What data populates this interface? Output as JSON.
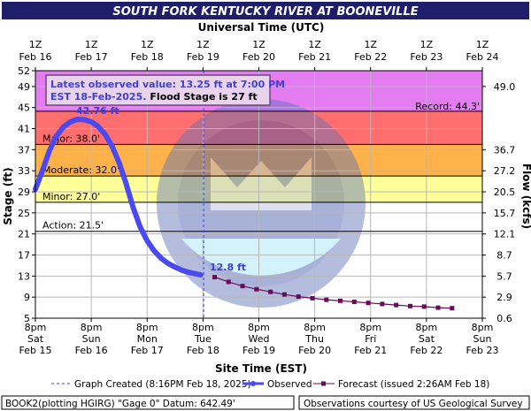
{
  "title": "SOUTH FORK KENTUCKY RIVER AT BOONEVILLE",
  "top_axis_title": "Universal Time (UTC)",
  "bottom_axis_title": "Site Time (EST)",
  "left_axis_title": "Stage (ft)",
  "right_axis_title": "Flow (kcfs)",
  "info_box": {
    "line1": "Latest observed value: 13.25 ft at 7:00 PM",
    "line2_date": "EST 18-Feb-2025.",
    "line2_flood": "Flood Stage is 27 ft"
  },
  "annotations": {
    "peak_label": "42.76 ft",
    "latest_label": "12.8 ft"
  },
  "footer": {
    "left": "BOOK2(plotting HGIRG) \"Gage 0\" Datum: 642.49'",
    "right": "Observations courtesy of US Geological Survey"
  },
  "legend": {
    "created": "Graph Created (8:16PM Feb 18, 2025)",
    "observed": "Observed",
    "forecast": "Forecast (issued 2:26AM Feb 18)"
  },
  "colors": {
    "title_bar": "#1e1e6b",
    "observed": "#4a4af0",
    "forecast": "#6a0a5a",
    "record_band": "#e37cf0",
    "major_band": "#ff6e6e",
    "moderate_band": "#ffb14a",
    "minor_band": "#ffff9a",
    "action_band": "#ffffff"
  },
  "chart_data": {
    "type": "line",
    "title": "SOUTH FORK KENTUCKY RIVER AT BOONEVILLE",
    "xlabel": "Site Time (EST)",
    "x2label": "Universal Time (UTC)",
    "ylabel": "Stage (ft)",
    "y2label": "Flow (kcfs)",
    "x_range": [
      "2025-02-15T20:00",
      "2025-02-23T20:00"
    ],
    "ylim": [
      5,
      52
    ],
    "y_ticks": [
      5,
      9,
      13,
      17,
      21,
      25,
      29,
      33,
      37,
      41,
      45,
      49,
      52
    ],
    "x_ticks_bottom": [
      {
        "time": "8pm",
        "day": "Sat",
        "date": "Feb 15"
      },
      {
        "time": "8pm",
        "day": "Sun",
        "date": "Feb 16"
      },
      {
        "time": "8pm",
        "day": "Mon",
        "date": "Feb 17"
      },
      {
        "time": "8pm",
        "day": "Tue",
        "date": "Feb 18"
      },
      {
        "time": "8pm",
        "day": "Wed",
        "date": "Feb 19"
      },
      {
        "time": "8pm",
        "day": "Thu",
        "date": "Feb 20"
      },
      {
        "time": "8pm",
        "day": "Fri",
        "date": "Feb 21"
      },
      {
        "time": "8pm",
        "day": "Sat",
        "date": "Feb 22"
      },
      {
        "time": "8pm",
        "day": "Sun",
        "date": "Feb 23"
      }
    ],
    "x_ticks_top": [
      {
        "time": "1Z",
        "date": "Feb 16"
      },
      {
        "time": "1Z",
        "date": "Feb 17"
      },
      {
        "time": "1Z",
        "date": "Feb 18"
      },
      {
        "time": "1Z",
        "date": "Feb 19"
      },
      {
        "time": "1Z",
        "date": "Feb 20"
      },
      {
        "time": "1Z",
        "date": "Feb 21"
      },
      {
        "time": "1Z",
        "date": "Feb 22"
      },
      {
        "time": "1Z",
        "date": "Feb 23"
      },
      {
        "time": "1Z",
        "date": "Feb 24"
      }
    ],
    "flow_ticks": [
      {
        "stage": 49,
        "label": "49.0"
      },
      {
        "stage": 37,
        "label": "36.7"
      },
      {
        "stage": 33,
        "label": "27.2"
      },
      {
        "stage": 29,
        "label": "20.5"
      },
      {
        "stage": 25,
        "label": "15.7"
      },
      {
        "stage": 21,
        "label": "12.1"
      },
      {
        "stage": 17,
        "label": "8.7"
      },
      {
        "stage": 13,
        "label": "5.7"
      },
      {
        "stage": 9,
        "label": "2.9"
      },
      {
        "stage": 5,
        "label": "0.6"
      }
    ],
    "thresholds": [
      {
        "name": "Record",
        "label": "Record: 44.3'",
        "value": 44.3
      },
      {
        "name": "Major",
        "label": "Major: 38.0'",
        "value": 38.0
      },
      {
        "name": "Moderate",
        "label": "Moderate: 32.0'",
        "value": 32.0
      },
      {
        "name": "Minor",
        "label": "Minor: 27.0'",
        "value": 27.0
      },
      {
        "name": "Action",
        "label": "Action: 21.5'",
        "value": 21.5
      }
    ],
    "graph_created": "2025-02-18T20:16",
    "series": [
      {
        "name": "Observed",
        "points": [
          {
            "t": "2025-02-15T20:00",
            "y": 29.5
          },
          {
            "t": "2025-02-15T23:00",
            "y": 33.0
          },
          {
            "t": "2025-02-16T02:00",
            "y": 36.8
          },
          {
            "t": "2025-02-16T05:00",
            "y": 39.6
          },
          {
            "t": "2025-02-16T08:00",
            "y": 41.3
          },
          {
            "t": "2025-02-16T11:00",
            "y": 42.3
          },
          {
            "t": "2025-02-16T14:00",
            "y": 42.76
          },
          {
            "t": "2025-02-16T17:00",
            "y": 42.7
          },
          {
            "t": "2025-02-16T20:00",
            "y": 42.3
          },
          {
            "t": "2025-02-16T23:00",
            "y": 41.4
          },
          {
            "t": "2025-02-17T02:00",
            "y": 39.9
          },
          {
            "t": "2025-02-17T05:00",
            "y": 37.6
          },
          {
            "t": "2025-02-17T08:00",
            "y": 34.5
          },
          {
            "t": "2025-02-17T11:00",
            "y": 30.5
          },
          {
            "t": "2025-02-17T14:00",
            "y": 26.0
          },
          {
            "t": "2025-02-17T17:00",
            "y": 22.3
          },
          {
            "t": "2025-02-17T20:00",
            "y": 19.7
          },
          {
            "t": "2025-02-17T23:00",
            "y": 17.8
          },
          {
            "t": "2025-02-18T02:00",
            "y": 16.4
          },
          {
            "t": "2025-02-18T05:00",
            "y": 15.4
          },
          {
            "t": "2025-02-18T08:00",
            "y": 14.7
          },
          {
            "t": "2025-02-18T11:00",
            "y": 14.1
          },
          {
            "t": "2025-02-18T14:00",
            "y": 13.7
          },
          {
            "t": "2025-02-18T19:00",
            "y": 13.25
          }
        ]
      },
      {
        "name": "Forecast (issued 2:26AM Feb 18)",
        "points": [
          {
            "t": "2025-02-19T01:00",
            "y": 12.8
          },
          {
            "t": "2025-02-19T07:00",
            "y": 11.9
          },
          {
            "t": "2025-02-19T13:00",
            "y": 11.1
          },
          {
            "t": "2025-02-19T19:00",
            "y": 10.5
          },
          {
            "t": "2025-02-20T01:00",
            "y": 10.0
          },
          {
            "t": "2025-02-20T07:00",
            "y": 9.5
          },
          {
            "t": "2025-02-20T13:00",
            "y": 9.1
          },
          {
            "t": "2025-02-20T19:00",
            "y": 8.8
          },
          {
            "t": "2025-02-21T01:00",
            "y": 8.5
          },
          {
            "t": "2025-02-21T07:00",
            "y": 8.3
          },
          {
            "t": "2025-02-21T13:00",
            "y": 8.1
          },
          {
            "t": "2025-02-21T19:00",
            "y": 7.9
          },
          {
            "t": "2025-02-22T01:00",
            "y": 7.7
          },
          {
            "t": "2025-02-22T07:00",
            "y": 7.5
          },
          {
            "t": "2025-02-22T13:00",
            "y": 7.3
          },
          {
            "t": "2025-02-22T19:00",
            "y": 7.2
          },
          {
            "t": "2025-02-23T01:00",
            "y": 7.0
          },
          {
            "t": "2025-02-23T07:00",
            "y": 6.9
          }
        ]
      }
    ]
  }
}
